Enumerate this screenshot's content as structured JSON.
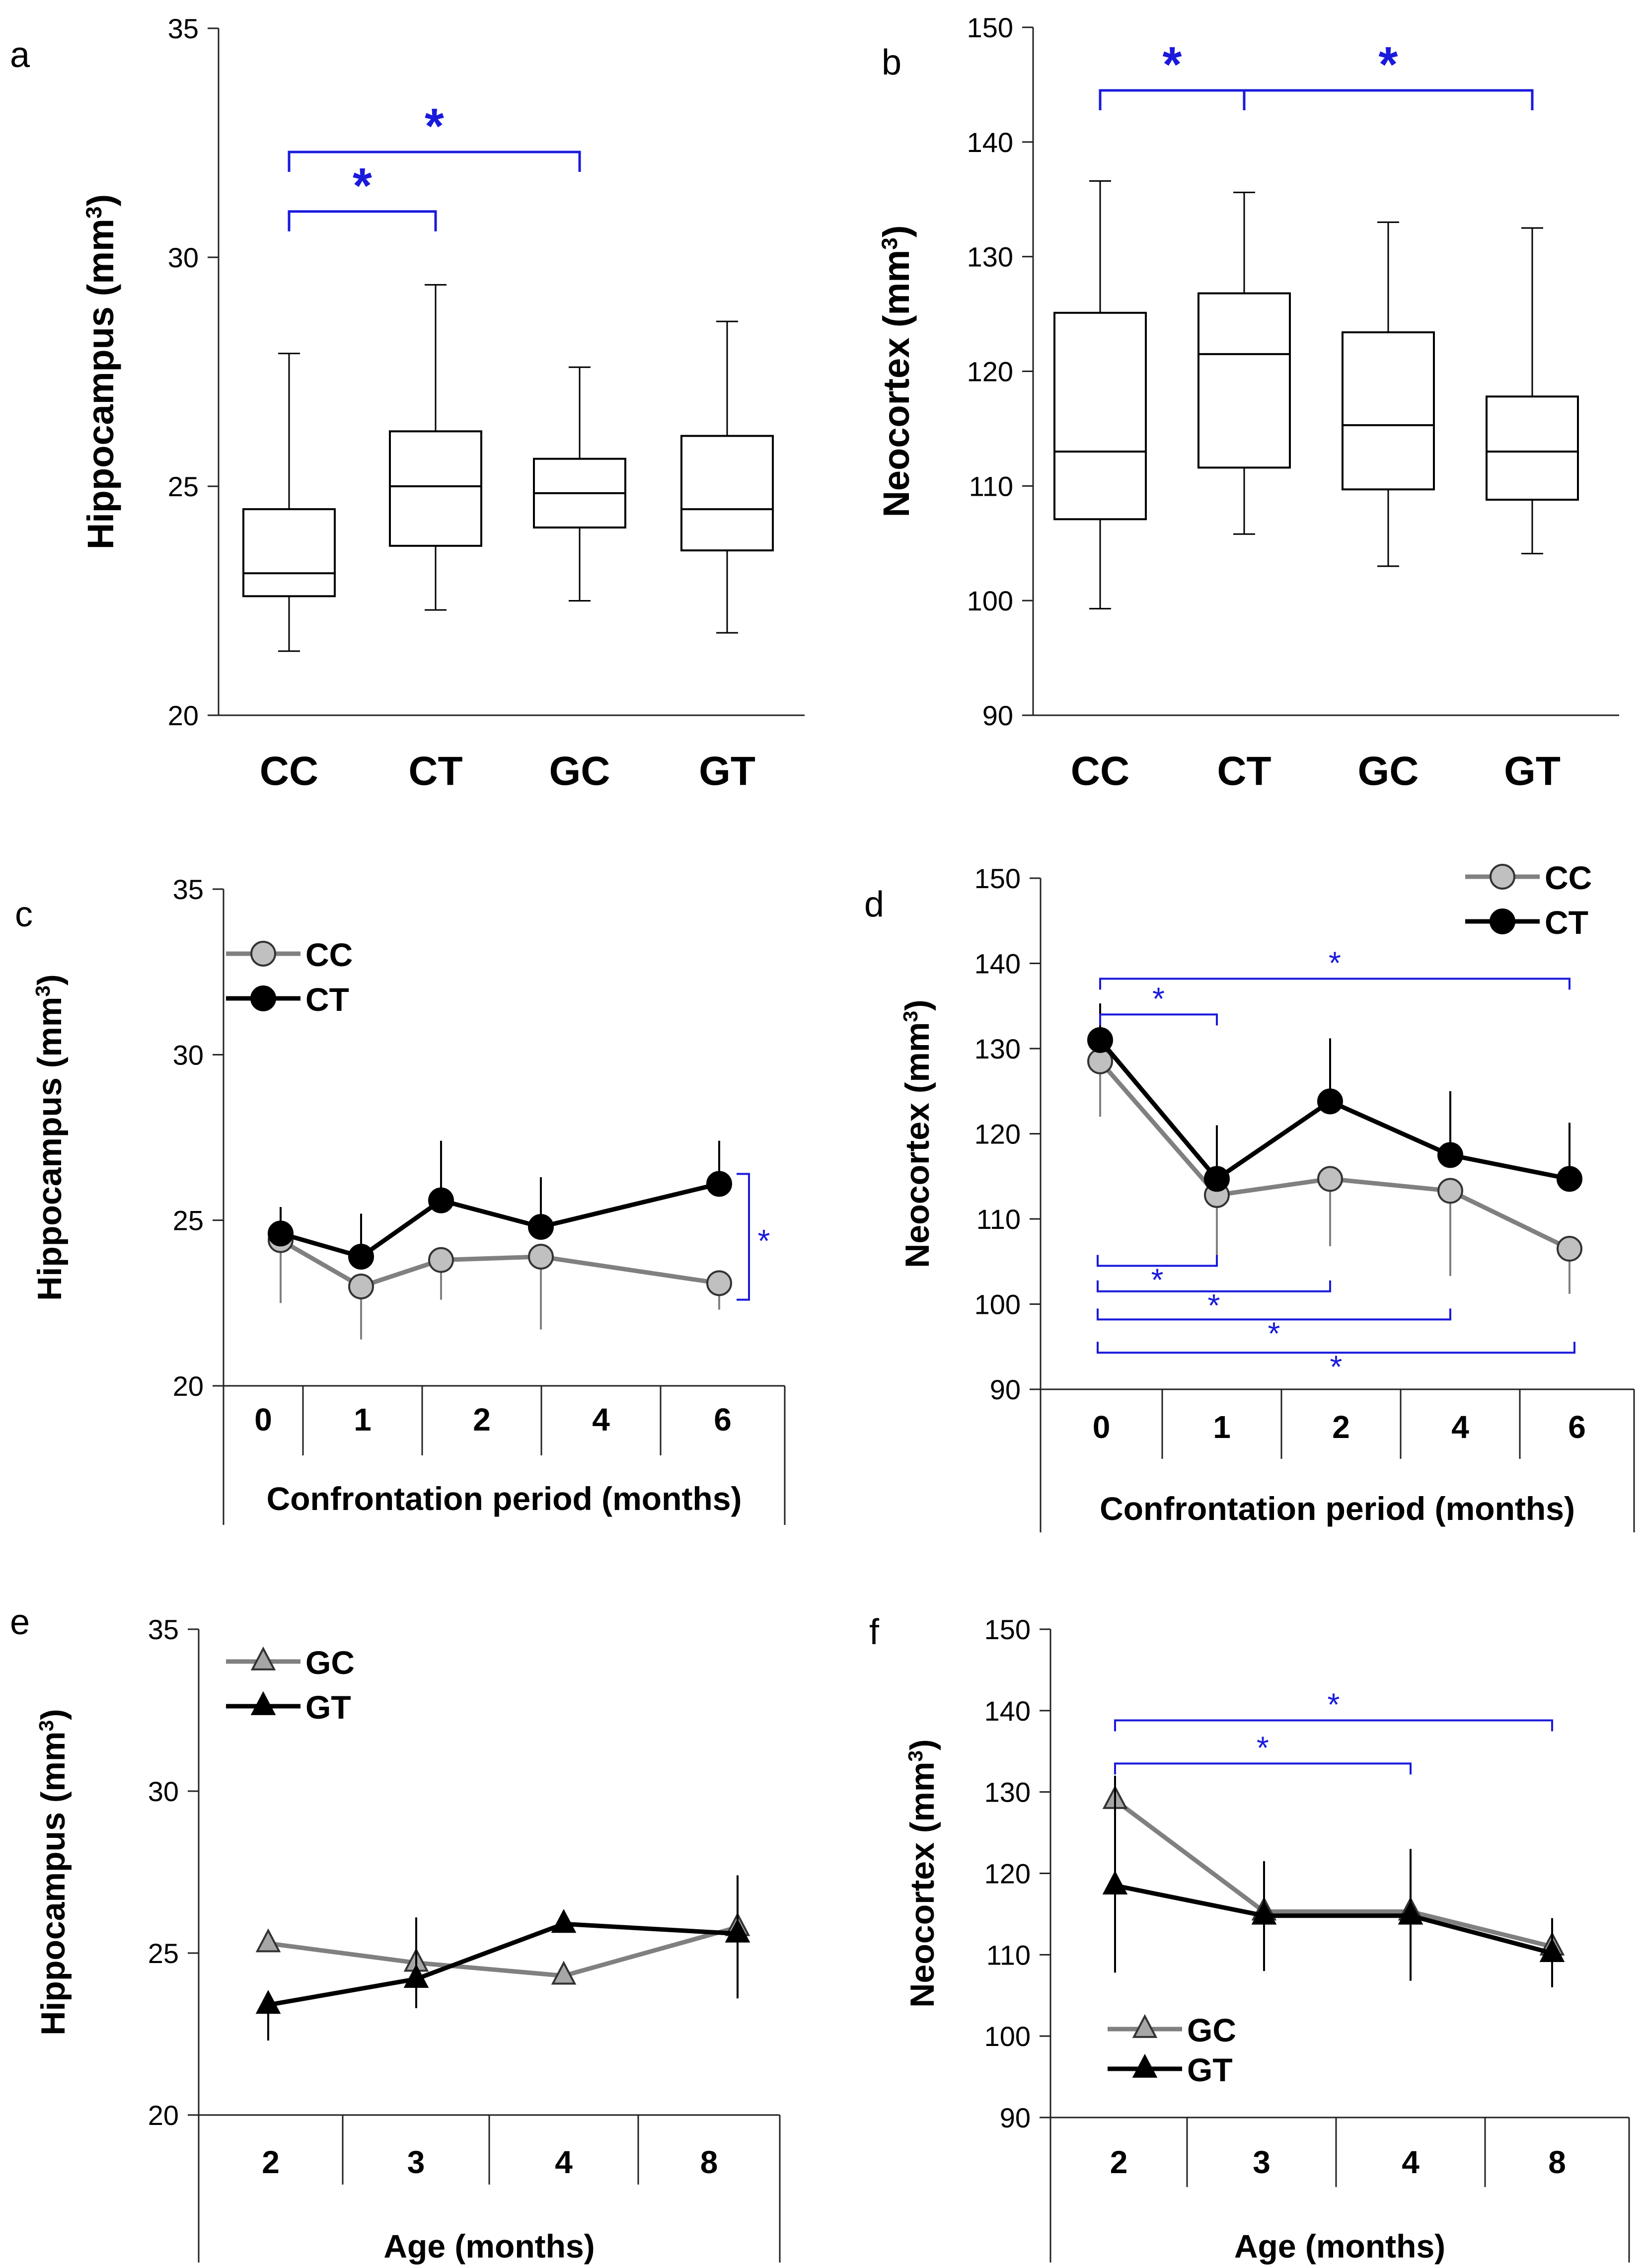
{
  "chart_data": [
    {
      "id": "a",
      "panel_label": "a",
      "type": "box",
      "ylabel": "Hippocampus (mm",
      "ylabel_sup": "3",
      "ylabel_tail": ")",
      "ylim": [
        20,
        35
      ],
      "yticks": [
        "20",
        "25",
        "30",
        "35"
      ],
      "categories": [
        "CC",
        "CT",
        "GC",
        "GT"
      ],
      "boxes": [
        {
          "min": 21.4,
          "q1": 22.6,
          "median": 23.1,
          "q3": 24.5,
          "max": 27.9
        },
        {
          "min": 22.3,
          "q1": 23.7,
          "median": 25.0,
          "q3": 26.2,
          "max": 29.4
        },
        {
          "min": 22.5,
          "q1": 24.1,
          "median": 24.85,
          "q3": 25.6,
          "max": 27.6
        },
        {
          "min": 21.8,
          "q1": 23.6,
          "median": 24.5,
          "q3": 26.1,
          "max": 28.6
        }
      ],
      "significance": [
        {
          "from": 0,
          "to": 1,
          "y": 31.0,
          "label": "*"
        },
        {
          "from": 0,
          "to": 2,
          "y": 32.3,
          "label": "*"
        }
      ]
    },
    {
      "id": "b",
      "panel_label": "b",
      "type": "box",
      "ylabel": "Neocortex  (mm",
      "ylabel_sup": "3",
      "ylabel_tail": ")",
      "ylim": [
        90,
        150
      ],
      "yticks": [
        "90",
        "100",
        "110",
        "120",
        "130",
        "140",
        "150"
      ],
      "categories": [
        "CC",
        "CT",
        "GC",
        "GT"
      ],
      "boxes": [
        {
          "min": 99.3,
          "q1": 107.1,
          "median": 113.0,
          "q3": 125.1,
          "max": 136.6
        },
        {
          "min": 105.8,
          "q1": 111.6,
          "median": 121.5,
          "q3": 126.8,
          "max": 135.6
        },
        {
          "min": 103.0,
          "q1": 109.7,
          "median": 115.3,
          "q3": 123.4,
          "max": 133.0
        },
        {
          "min": 104.1,
          "q1": 108.8,
          "median": 113.0,
          "q3": 117.8,
          "max": 132.5
        }
      ],
      "significance": [
        {
          "from": 0,
          "to": 1,
          "y": 144.5,
          "label": "*"
        },
        {
          "from": 1,
          "to": 3,
          "y": 144.5,
          "label": "*"
        }
      ]
    },
    {
      "id": "c",
      "panel_label": "c",
      "type": "line",
      "ylabel": "Hippocampus (mm",
      "ylabel_sup": "3",
      "ylabel_tail": ")",
      "xlabel": "Confrontation period (months)",
      "ylim": [
        20,
        35
      ],
      "yticks": [
        "20",
        "25",
        "30",
        "35"
      ],
      "categories": [
        "0",
        "1",
        "2",
        "4",
        "6"
      ],
      "series": [
        {
          "name": "CC",
          "color": "#808080",
          "marker": "circle",
          "marker_fill": "#c0c0c0",
          "values": [
            24.4,
            23.0,
            23.8,
            23.9,
            23.1
          ],
          "err_low": [
            22.5,
            21.4,
            22.6,
            21.7,
            22.3
          ],
          "err_high": [
            24.4,
            23.0,
            23.8,
            23.9,
            23.1
          ]
        },
        {
          "name": "CT",
          "color": "#000000",
          "marker": "circle",
          "marker_fill": "#000000",
          "values": [
            24.6,
            23.9,
            25.6,
            24.8,
            26.1
          ],
          "err_low": [
            24.6,
            23.9,
            25.6,
            24.8,
            26.1
          ],
          "err_high": [
            25.4,
            25.2,
            27.4,
            26.3,
            27.4
          ]
        }
      ],
      "significance": [
        {
          "kind": "vertical",
          "x_after": 4,
          "y1": 22.6,
          "y2": 26.4,
          "label": "*"
        }
      ]
    },
    {
      "id": "d",
      "panel_label": "d",
      "type": "line",
      "ylabel": "Neocortex (mm",
      "ylabel_sup": "3",
      "ylabel_tail": ")",
      "xlabel": "Confrontation period (months)",
      "ylim": [
        90,
        150
      ],
      "yticks": [
        "90",
        "100",
        "110",
        "120",
        "130",
        "140",
        "150"
      ],
      "categories": [
        "0",
        "1",
        "2",
        "4",
        "6"
      ],
      "series": [
        {
          "name": "CC",
          "color": "#808080",
          "marker": "circle",
          "marker_fill": "#c0c0c0",
          "values": [
            128.5,
            112.8,
            114.7,
            113.3,
            106.5
          ],
          "err_low": [
            122.0,
            104.5,
            106.8,
            103.3,
            101.2
          ],
          "err_high": [
            128.5,
            112.8,
            114.7,
            113.3,
            106.5
          ]
        },
        {
          "name": "CT",
          "color": "#000000",
          "marker": "circle",
          "marker_fill": "#000000",
          "values": [
            131.0,
            114.7,
            123.8,
            117.5,
            114.7
          ],
          "err_low": [
            131.0,
            114.7,
            123.8,
            117.5,
            114.7
          ],
          "err_high": [
            135.3,
            121.0,
            131.2,
            125.0,
            121.3
          ]
        }
      ],
      "significance": [
        {
          "kind": "above",
          "from": 0,
          "to": 4,
          "y": 138.2,
          "label": "*"
        },
        {
          "kind": "above",
          "from": 0,
          "to": 1,
          "y": 134.0,
          "label": "*"
        },
        {
          "kind": "below",
          "from": 0,
          "to": 1,
          "y": 104.5,
          "label": "*"
        },
        {
          "kind": "below",
          "from": 0,
          "to": 2,
          "y": 101.5,
          "label": "*"
        },
        {
          "kind": "below",
          "from": 0,
          "to": 3,
          "y": 98.2,
          "label": "*"
        },
        {
          "kind": "below",
          "from": 0,
          "to": 4,
          "y": 94.3,
          "label": "*"
        }
      ]
    },
    {
      "id": "e",
      "panel_label": "e",
      "type": "line",
      "ylabel": "Hippocampus (mm",
      "ylabel_sup": "3",
      "ylabel_tail": ")",
      "xlabel": "Age (months)",
      "ylim": [
        20,
        35
      ],
      "yticks": [
        "20",
        "25",
        "30",
        "35"
      ],
      "categories": [
        "2",
        "3",
        "4",
        "8"
      ],
      "series": [
        {
          "name": "GC",
          "color": "#808080",
          "marker": "triangle",
          "marker_fill": "#a6a6a6",
          "values": [
            25.3,
            24.7,
            24.3,
            25.8
          ],
          "err_low": [
            25.3,
            24.7,
            24.3,
            25.8
          ],
          "err_high": [
            25.3,
            24.7,
            24.3,
            25.8
          ]
        },
        {
          "name": "GT",
          "color": "#000000",
          "marker": "triangle",
          "marker_fill": "#000000",
          "values": [
            23.4,
            24.2,
            25.9,
            25.6
          ],
          "err_low": [
            22.3,
            23.3,
            25.9,
            23.6
          ],
          "err_high": [
            23.4,
            26.1,
            25.9,
            27.4
          ]
        }
      ],
      "significance": []
    },
    {
      "id": "f",
      "panel_label": "f",
      "type": "line",
      "ylabel": "Neocortex (mm",
      "ylabel_sup": "3",
      "ylabel_tail": ")",
      "xlabel": "Age (months)",
      "ylim": [
        90,
        150
      ],
      "yticks": [
        "90",
        "100",
        "110",
        "120",
        "130",
        "140",
        "150"
      ],
      "categories": [
        "2",
        "3",
        "4",
        "8"
      ],
      "series": [
        {
          "name": "GC",
          "color": "#808080",
          "marker": "triangle",
          "marker_fill": "#a6a6a6",
          "values": [
            129.0,
            115.3,
            115.3,
            111.0
          ],
          "err_low": [
            129.0,
            115.3,
            115.3,
            111.0
          ],
          "err_high": [
            129.0,
            115.3,
            115.3,
            111.0
          ]
        },
        {
          "name": "GT",
          "color": "#000000",
          "marker": "triangle",
          "marker_fill": "#000000",
          "values": [
            118.5,
            114.8,
            114.8,
            110.2
          ],
          "err_low": [
            107.8,
            108.0,
            106.8,
            106.0
          ],
          "err_high": [
            132.0,
            121.5,
            123.0,
            114.5
          ]
        }
      ],
      "significance": [
        {
          "kind": "above",
          "from": 0,
          "to": 3,
          "y": 138.8,
          "label": "*"
        },
        {
          "kind": "above",
          "from": 0,
          "to": 2,
          "y": 133.5,
          "label": "*"
        }
      ]
    }
  ]
}
